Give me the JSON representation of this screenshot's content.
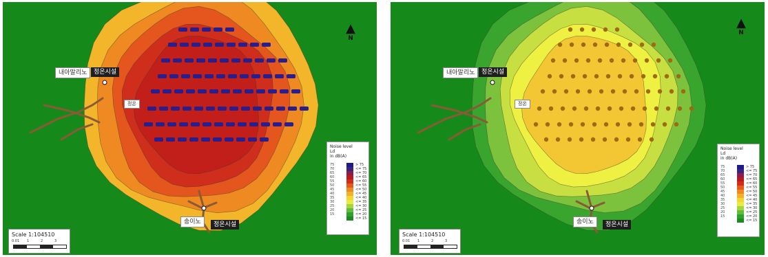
{
  "panels": [
    {
      "id": "left",
      "scale_label": "Scale 1:104510",
      "scale_ticks": [
        "0.01",
        "1",
        "2",
        "3"
      ],
      "north_label": "N",
      "places": {
        "village_upper": "내아말리노",
        "facility_upper": "정온시설",
        "facility_small": "정온",
        "village_lower": "송이노",
        "facility_lower": "정온시설"
      },
      "legend": {
        "title": "Noise level",
        "subtitle": "Ld",
        "unit": "in dB(A)",
        "levels": [
          {
            "color": "#1e8a22",
            "label": "<= 15"
          },
          {
            "color": "#2ca12b",
            "label": "<= 20"
          },
          {
            "color": "#5fbd3b",
            "label": "<= 25"
          },
          {
            "color": "#a6d33f",
            "label": "<= 30"
          },
          {
            "color": "#e6ec42",
            "label": "<= 35"
          },
          {
            "color": "#f6d432",
            "label": "<= 40"
          },
          {
            "color": "#f3b029",
            "label": "<= 45"
          },
          {
            "color": "#ef8a22",
            "label": "<= 50"
          },
          {
            "color": "#e45a1d",
            "label": "<= 55"
          },
          {
            "color": "#d42a1a",
            "label": "<= 60"
          },
          {
            "color": "#b41a1e",
            "label": "<= 65"
          },
          {
            "color": "#8a1d4a",
            "label": "<= 70"
          },
          {
            "color": "#3a2280",
            "label": "<= 75"
          },
          {
            "color": "#1c1a8c",
            "label": "> 75"
          }
        ],
        "left_values": [
          "15",
          "20",
          "25",
          "30",
          "35",
          "40",
          "45",
          "50",
          "55",
          "60",
          "65",
          "70",
          "75"
        ]
      },
      "colors": {
        "background": "#158a1a",
        "bands": [
          "#f3b52a",
          "#ef8a22",
          "#e4561d",
          "#cf2e1c",
          "#c21f1a"
        ],
        "sources": "#2a1e8a"
      }
    },
    {
      "id": "right",
      "scale_label": "Scale 1:104510",
      "scale_ticks": [
        "0.01",
        "1",
        "2",
        "3"
      ],
      "north_label": "N",
      "places": {
        "village_upper": "내아말리노",
        "facility_upper": "정온시설",
        "facility_small": "정온",
        "village_lower": "송이노",
        "facility_lower": "정온시설"
      },
      "legend": {
        "title": "Noise level",
        "subtitle": "Ld",
        "unit": "in dB(A)",
        "levels": [
          {
            "color": "#1e8a22",
            "label": "<= 15"
          },
          {
            "color": "#2ca12b",
            "label": "<= 20"
          },
          {
            "color": "#5fbd3b",
            "label": "<= 25"
          },
          {
            "color": "#a6d33f",
            "label": "<= 30"
          },
          {
            "color": "#e6ec42",
            "label": "<= 35"
          },
          {
            "color": "#f6d432",
            "label": "<= 40"
          },
          {
            "color": "#f3b029",
            "label": "<= 45"
          },
          {
            "color": "#ef8a22",
            "label": "<= 50"
          },
          {
            "color": "#e45a1d",
            "label": "<= 55"
          },
          {
            "color": "#d42a1a",
            "label": "<= 60"
          },
          {
            "color": "#b41a1e",
            "label": "<= 65"
          },
          {
            "color": "#8a1d4a",
            "label": "<= 70"
          },
          {
            "color": "#3a2280",
            "label": "<= 75"
          },
          {
            "color": "#1c1a8c",
            "label": "> 75"
          }
        ],
        "left_values": [
          "15",
          "20",
          "25",
          "30",
          "35",
          "40",
          "45",
          "50",
          "55",
          "60",
          "65",
          "70",
          "75"
        ]
      },
      "colors": {
        "background": "#158a1a",
        "bands": [
          "#3aa52e",
          "#7cc23c",
          "#c7df40",
          "#eef142",
          "#f3c733"
        ],
        "sources": "#a06a10"
      }
    }
  ]
}
